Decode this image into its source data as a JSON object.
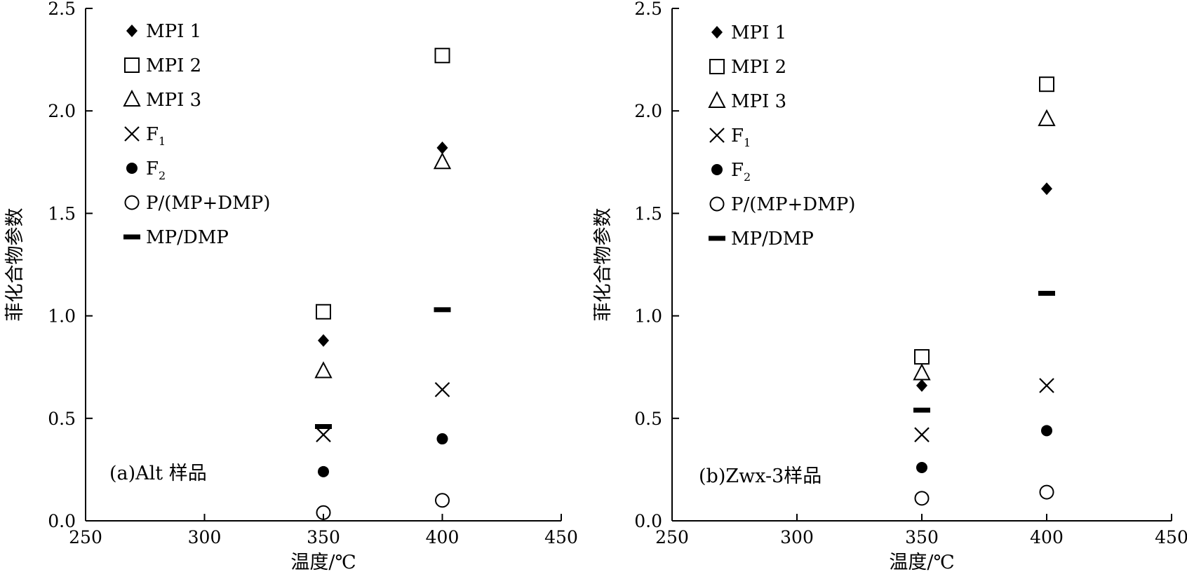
{
  "chart_data": [
    {
      "type": "scatter",
      "panel_label": "(a)Alt 样品",
      "xlabel": "温度/℃",
      "ylabel": "菲化合物参数",
      "xlim": [
        250,
        450
      ],
      "ylim": [
        0,
        2.5
      ],
      "xticks": [
        "250",
        "300",
        "350",
        "400",
        "450"
      ],
      "yticks": [
        "0.0",
        "0.5",
        "1.0",
        "1.5",
        "2.0",
        "2.5"
      ],
      "x": [
        350,
        400
      ],
      "series": [
        {
          "name": "MPI 1",
          "sub": "",
          "marker": "diamond-filled",
          "values": [
            0.88,
            1.82
          ]
        },
        {
          "name": "MPI 2",
          "sub": "",
          "marker": "square-open",
          "values": [
            1.02,
            2.27
          ]
        },
        {
          "name": "MPI 3",
          "sub": "",
          "marker": "triangle-open",
          "values": [
            0.73,
            1.75
          ]
        },
        {
          "name": "F",
          "sub": "1",
          "marker": "cross",
          "values": [
            0.42,
            0.64
          ]
        },
        {
          "name": "F",
          "sub": "2",
          "marker": "circle-filled",
          "values": [
            0.24,
            0.4
          ]
        },
        {
          "name": "P/(MP+DMP)",
          "sub": "",
          "marker": "circle-open",
          "values": [
            0.04,
            0.1
          ]
        },
        {
          "name": "MP/DMP",
          "sub": "",
          "marker": "dash",
          "values": [
            0.46,
            1.03
          ]
        }
      ]
    },
    {
      "type": "scatter",
      "panel_label": "(b)Zwx-3样品",
      "xlabel": "温度/℃",
      "ylabel": "菲化合物参数",
      "xlim": [
        250,
        450
      ],
      "ylim": [
        0,
        2.5
      ],
      "xticks": [
        "250",
        "300",
        "350",
        "400",
        "450"
      ],
      "yticks": [
        "0.0",
        "0.5",
        "1.0",
        "1.5",
        "2.0",
        "2.5"
      ],
      "x": [
        350,
        400
      ],
      "series": [
        {
          "name": "MPI 1",
          "sub": "",
          "marker": "diamond-filled",
          "values": [
            0.66,
            1.62
          ]
        },
        {
          "name": "MPI 2",
          "sub": "",
          "marker": "square-open",
          "values": [
            0.8,
            2.13
          ]
        },
        {
          "name": "MPI 3",
          "sub": "",
          "marker": "triangle-open",
          "values": [
            0.72,
            1.96
          ]
        },
        {
          "name": "F",
          "sub": "1",
          "marker": "cross",
          "values": [
            0.42,
            0.66
          ]
        },
        {
          "name": "F",
          "sub": "2",
          "marker": "circle-filled",
          "values": [
            0.26,
            0.44
          ]
        },
        {
          "name": "P/(MP+DMP)",
          "sub": "",
          "marker": "circle-open",
          "values": [
            0.11,
            0.14
          ]
        },
        {
          "name": "MP/DMP",
          "sub": "",
          "marker": "dash",
          "values": [
            0.54,
            1.11
          ]
        }
      ]
    }
  ]
}
